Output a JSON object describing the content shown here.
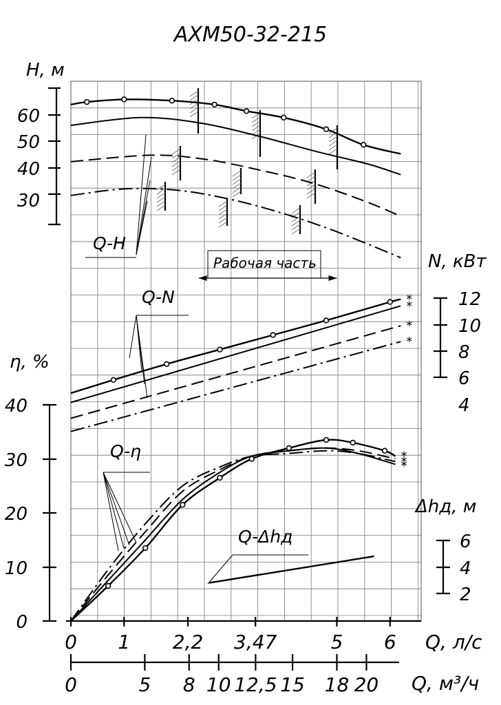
{
  "chart_data": {
    "type": "line",
    "title": "АХМ50-32-215",
    "grid": true,
    "x_axis_primary": {
      "label": "Q, л/с",
      "ticks": [
        "0",
        "1",
        "2,2",
        "3,47",
        "5",
        "6"
      ],
      "range": [
        0,
        6.5
      ]
    },
    "x_axis_secondary": {
      "label": "Q, м³/ч",
      "ticks": [
        "0",
        "5",
        "8",
        "10",
        "12,5",
        "15",
        "18",
        "20"
      ]
    },
    "working_range": {
      "label": "Рабочая часть",
      "from": 2.4,
      "to": 5.0
    },
    "curve_labels": [
      "Q-H",
      "Q-N",
      "Q-η",
      "Q-Δhд"
    ],
    "marker_symbol": "*",
    "panels": [
      {
        "name": "Q-H",
        "ylabel": "H, м",
        "ticks": [
          "60",
          "50",
          "40",
          "30"
        ],
        "series": [
          {
            "style": "solid-markers",
            "x": [
              0,
              0.3,
              1.0,
              1.9,
              2.7,
              3.3,
              4.0,
              4.8,
              5.5,
              6.2
            ],
            "y": [
              64,
              65,
              66,
              65.5,
              64,
              61.5,
              59,
              54.5,
              48.5,
              45
            ]
          },
          {
            "style": "solid",
            "x": [
              0,
              1.3,
              2.4,
              3.5,
              4.6,
              5.6,
              6.2
            ],
            "y": [
              56,
              59,
              57,
              52,
              46,
              41,
              37
            ]
          },
          {
            "style": "dashed",
            "x": [
              0,
              1.5,
              2.5,
              3.5,
              4.5,
              5.5,
              6.2
            ],
            "y": [
              42,
              44.5,
              43,
              39,
              34,
              27,
              21
            ]
          },
          {
            "style": "dash-dot",
            "x": [
              0,
              1.0,
              2.0,
              3.0,
              4.0,
              5.0,
              6.2
            ],
            "y": [
              29,
              31.5,
              31,
              27.5,
              22,
              15,
              5
            ]
          }
        ]
      },
      {
        "name": "Q-N",
        "ylabel": "N, кВт",
        "ticks": [
          "12",
          "10",
          "8",
          "6",
          "4"
        ],
        "series": [
          {
            "style": "solid-markers",
            "x": [
              0,
              0.8,
              1.8,
              2.8,
              3.8,
              4.8,
              6.0,
              6.2
            ],
            "y": [
              4.8,
              5.8,
              7.0,
              8.1,
              9.2,
              10.3,
              11.7,
              11.9
            ]
          },
          {
            "style": "solid",
            "x": [
              0,
              6.2
            ],
            "y": [
              4.1,
              11.4
            ]
          },
          {
            "style": "dashed",
            "x": [
              0,
              6.2
            ],
            "y": [
              2.9,
              9.9
            ]
          },
          {
            "style": "dash-dot",
            "x": [
              0,
              6.2
            ],
            "y": [
              1.9,
              8.7
            ]
          }
        ]
      },
      {
        "name": "Q-η",
        "ylabel": "η, %",
        "ticks": [
          "40",
          "30",
          "20",
          "10",
          "0"
        ],
        "series": [
          {
            "style": "solid-markers",
            "x": [
              0,
              0.7,
              1.4,
              2.1,
              2.8,
              3.4,
              4.1,
              4.8,
              5.3,
              5.9,
              6.1
            ],
            "y": [
              0,
              6.5,
              13.5,
              21.5,
              26.5,
              30,
              32,
              33.5,
              33,
              31.5,
              30.5
            ]
          },
          {
            "style": "solid",
            "x": [
              0,
              0.7,
              1.4,
              2.1,
              2.8,
              3.4,
              4.1,
              4.8,
              5.4,
              6.1
            ],
            "y": [
              0,
              7.5,
              15,
              22.5,
              27.5,
              30.5,
              31.5,
              32,
              31,
              29
            ]
          },
          {
            "style": "dashed",
            "x": [
              0,
              0.7,
              1.4,
              2.1,
              2.8,
              3.4,
              4.1,
              4.8,
              5.4,
              6.1
            ],
            "y": [
              0,
              8.5,
              16.5,
              24,
              28,
              30.5,
              31.5,
              32,
              31.5,
              30
            ]
          },
          {
            "style": "dash-dot",
            "x": [
              0,
              0.7,
              1.4,
              2.1,
              2.8,
              3.4,
              4.1,
              4.8,
              5.4,
              6.1
            ],
            "y": [
              0,
              9.5,
              18,
              25,
              28.5,
              30.5,
              31,
              31.5,
              31,
              29.5
            ]
          }
        ]
      },
      {
        "name": "Q-Δhд",
        "ylabel": "Δhд, м",
        "ticks": [
          "6",
          "4",
          "2"
        ],
        "series": [
          {
            "style": "solid",
            "x": [
              2.6,
              5.7
            ],
            "y": [
              2.8,
              4.8
            ]
          }
        ]
      }
    ]
  }
}
